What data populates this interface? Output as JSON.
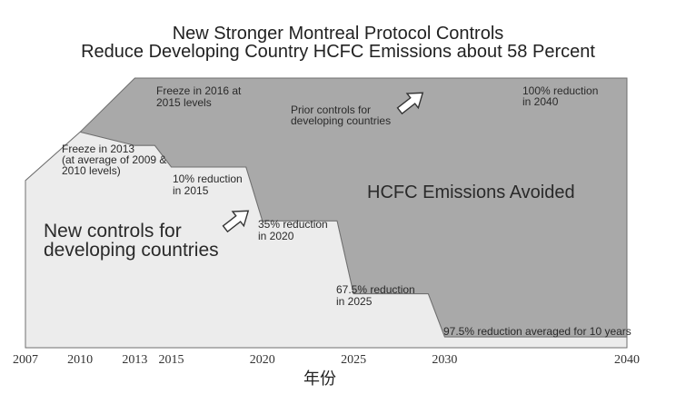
{
  "chart_data": {
    "type": "area",
    "title_line1": "New Stronger Montreal Protocol Controls",
    "title_line2": "Reduce Developing Country HCFC Emissions about 58 Percent",
    "xlabel": "年份",
    "xlim": [
      2007,
      2040
    ],
    "ylim": [
      0,
      100
    ],
    "grid": false,
    "x_ticks": [
      2007,
      2010,
      2013,
      2015,
      2020,
      2025,
      2030,
      2040
    ],
    "series": [
      {
        "name": "Prior controls for developing countries",
        "x": [
          2007,
          2010,
          2013,
          2015,
          2040
        ],
        "y": [
          62,
          80,
          100,
          100,
          100
        ]
      },
      {
        "name": "New controls for developing countries",
        "x": [
          2007,
          2010,
          2013,
          2015,
          2020,
          2025,
          2030,
          2040
        ],
        "y": [
          62,
          80,
          75,
          67,
          47,
          20,
          4,
          4
        ]
      }
    ],
    "regions": {
      "avoided_label_line1": "HCFC Emissions Avoided",
      "new_label_line1": "New controls for",
      "new_label_line2": "developing countries"
    },
    "annotations": [
      {
        "id": "freeze2016",
        "lines": [
          "Freeze in 2016 at",
          "2015 levels"
        ]
      },
      {
        "id": "prior",
        "lines": [
          "Prior controls for",
          "developing countries"
        ]
      },
      {
        "id": "r100",
        "lines": [
          "100% reduction",
          "in 2040"
        ]
      },
      {
        "id": "freeze2013",
        "lines": [
          "Freeze in 2013",
          "(at average of 2009 &",
          "2010 levels)"
        ]
      },
      {
        "id": "r10",
        "lines": [
          "10% reduction",
          "in 2015"
        ]
      },
      {
        "id": "r35",
        "lines": [
          "35% reduction",
          "in 2020"
        ]
      },
      {
        "id": "r675",
        "lines": [
          "67.5% reduction",
          "in 2025"
        ]
      },
      {
        "id": "r975",
        "lines": [
          "97.5% reduction averaged for 10 years"
        ]
      }
    ],
    "colors": {
      "avoided_fill": "#a9a9a9",
      "new_fill": "#ececec",
      "outline": "#6f6f6f",
      "arrow_fill": "#ffffff"
    }
  }
}
